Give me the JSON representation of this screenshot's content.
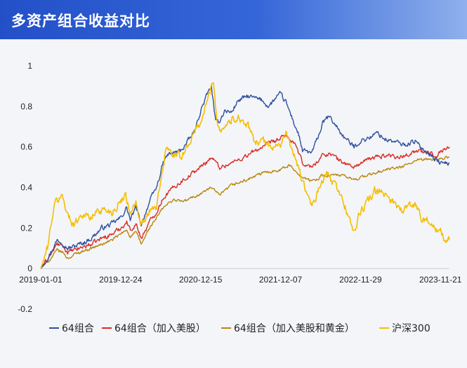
{
  "header": {
    "title": "多资产组合收益对比"
  },
  "chart_data": {
    "type": "line",
    "x_tick_labels": [
      "2019-01-01",
      "2019-12-24",
      "2020-12-15",
      "2021-12-07",
      "2022-11-29",
      "2023-11-21"
    ],
    "x_tick_dates": [
      "2019-01-01",
      "2019-12-24",
      "2020-12-15",
      "2021-12-07",
      "2022-11-29",
      "2023-11-21"
    ],
    "xlim": [
      "2019-01-01",
      "2023-12-31"
    ],
    "y_ticks": [
      -0.2,
      0,
      0.2,
      0.4,
      0.6,
      0.8,
      1
    ],
    "ylim": [
      -0.2,
      1.0
    ],
    "grid": false,
    "legend_position": "bottom",
    "series": [
      {
        "name": "64组合",
        "color": "#2f4fa0",
        "points": [
          [
            "2019-01-01",
            0.0
          ],
          [
            "2019-02-15",
            0.08
          ],
          [
            "2019-03-15",
            0.14
          ],
          [
            "2019-04-10",
            0.13
          ],
          [
            "2019-05-01",
            0.1
          ],
          [
            "2019-06-01",
            0.11
          ],
          [
            "2019-07-15",
            0.13
          ],
          [
            "2019-08-15",
            0.15
          ],
          [
            "2019-10-01",
            0.2
          ],
          [
            "2019-11-15",
            0.22
          ],
          [
            "2019-12-24",
            0.25
          ],
          [
            "2020-01-20",
            0.3
          ],
          [
            "2020-02-05",
            0.24
          ],
          [
            "2020-03-01",
            0.3
          ],
          [
            "2020-03-25",
            0.22
          ],
          [
            "2020-05-01",
            0.33
          ],
          [
            "2020-06-01",
            0.4
          ],
          [
            "2020-07-01",
            0.52
          ],
          [
            "2020-07-20",
            0.56
          ],
          [
            "2020-08-15",
            0.57
          ],
          [
            "2020-09-15",
            0.58
          ],
          [
            "2020-10-15",
            0.62
          ],
          [
            "2020-11-20",
            0.68
          ],
          [
            "2020-12-15",
            0.78
          ],
          [
            "2021-01-10",
            0.85
          ],
          [
            "2021-02-01",
            0.9
          ],
          [
            "2021-02-20",
            0.72
          ],
          [
            "2021-03-10",
            0.73
          ],
          [
            "2021-04-01",
            0.78
          ],
          [
            "2021-05-01",
            0.77
          ],
          [
            "2021-06-01",
            0.83
          ],
          [
            "2021-07-15",
            0.85
          ],
          [
            "2021-08-15",
            0.84
          ],
          [
            "2021-09-15",
            0.83
          ],
          [
            "2021-10-15",
            0.8
          ],
          [
            "2021-11-15",
            0.84
          ],
          [
            "2021-12-07",
            0.86
          ],
          [
            "2021-12-31",
            0.82
          ],
          [
            "2022-01-25",
            0.75
          ],
          [
            "2022-03-01",
            0.65
          ],
          [
            "2022-03-15",
            0.58
          ],
          [
            "2022-04-26",
            0.57
          ],
          [
            "2022-05-20",
            0.64
          ],
          [
            "2022-06-15",
            0.72
          ],
          [
            "2022-07-10",
            0.75
          ],
          [
            "2022-08-15",
            0.7
          ],
          [
            "2022-09-15",
            0.65
          ],
          [
            "2022-10-31",
            0.6
          ],
          [
            "2022-11-29",
            0.63
          ],
          [
            "2023-01-15",
            0.65
          ],
          [
            "2023-02-15",
            0.67
          ],
          [
            "2023-03-15",
            0.64
          ],
          [
            "2023-04-15",
            0.63
          ],
          [
            "2023-05-15",
            0.62
          ],
          [
            "2023-06-15",
            0.61
          ],
          [
            "2023-07-31",
            0.63
          ],
          [
            "2023-08-20",
            0.6
          ],
          [
            "2023-09-20",
            0.58
          ],
          [
            "2023-10-20",
            0.55
          ],
          [
            "2023-11-21",
            0.52
          ],
          [
            "2023-12-31",
            0.52
          ]
        ]
      },
      {
        "name": "64组合（加入美股）",
        "color": "#d82a20",
        "points": [
          [
            "2019-01-01",
            0.0
          ],
          [
            "2019-02-15",
            0.07
          ],
          [
            "2019-03-15",
            0.12
          ],
          [
            "2019-04-10",
            0.11
          ],
          [
            "2019-05-01",
            0.08
          ],
          [
            "2019-06-01",
            0.09
          ],
          [
            "2019-07-15",
            0.11
          ],
          [
            "2019-08-15",
            0.12
          ],
          [
            "2019-10-01",
            0.15
          ],
          [
            "2019-11-15",
            0.17
          ],
          [
            "2019-12-24",
            0.2
          ],
          [
            "2020-01-20",
            0.23
          ],
          [
            "2020-02-05",
            0.19
          ],
          [
            "2020-03-01",
            0.22
          ],
          [
            "2020-03-25",
            0.15
          ],
          [
            "2020-05-01",
            0.23
          ],
          [
            "2020-06-01",
            0.28
          ],
          [
            "2020-07-01",
            0.35
          ],
          [
            "2020-08-15",
            0.4
          ],
          [
            "2020-10-01",
            0.44
          ],
          [
            "2020-12-15",
            0.5
          ],
          [
            "2021-02-01",
            0.55
          ],
          [
            "2021-03-10",
            0.5
          ],
          [
            "2021-05-01",
            0.52
          ],
          [
            "2021-07-15",
            0.56
          ],
          [
            "2021-09-15",
            0.6
          ],
          [
            "2021-11-15",
            0.63
          ],
          [
            "2021-12-07",
            0.64
          ],
          [
            "2021-12-31",
            0.66
          ],
          [
            "2022-02-15",
            0.6
          ],
          [
            "2022-03-15",
            0.52
          ],
          [
            "2022-04-26",
            0.5
          ],
          [
            "2022-06-15",
            0.56
          ],
          [
            "2022-07-15",
            0.57
          ],
          [
            "2022-08-31",
            0.53
          ],
          [
            "2022-10-31",
            0.5
          ],
          [
            "2022-11-29",
            0.52
          ],
          [
            "2023-01-31",
            0.55
          ],
          [
            "2023-03-31",
            0.56
          ],
          [
            "2023-05-31",
            0.55
          ],
          [
            "2023-07-31",
            0.58
          ],
          [
            "2023-09-30",
            0.57
          ],
          [
            "2023-10-31",
            0.56
          ],
          [
            "2023-11-21",
            0.58
          ],
          [
            "2023-12-31",
            0.6
          ]
        ]
      },
      {
        "name": "64组合（加入美股和黄金）",
        "color": "#b8860b",
        "points": [
          [
            "2019-01-01",
            0.0
          ],
          [
            "2019-02-15",
            0.05
          ],
          [
            "2019-03-15",
            0.09
          ],
          [
            "2019-04-10",
            0.08
          ],
          [
            "2019-05-01",
            0.05
          ],
          [
            "2019-06-01",
            0.07
          ],
          [
            "2019-07-15",
            0.09
          ],
          [
            "2019-08-15",
            0.1
          ],
          [
            "2019-10-01",
            0.12
          ],
          [
            "2019-11-15",
            0.14
          ],
          [
            "2019-12-24",
            0.17
          ],
          [
            "2020-01-20",
            0.19
          ],
          [
            "2020-02-05",
            0.16
          ],
          [
            "2020-03-01",
            0.18
          ],
          [
            "2020-03-25",
            0.12
          ],
          [
            "2020-05-01",
            0.2
          ],
          [
            "2020-06-01",
            0.25
          ],
          [
            "2020-07-01",
            0.3
          ],
          [
            "2020-08-15",
            0.34
          ],
          [
            "2020-10-01",
            0.33
          ],
          [
            "2020-12-15",
            0.37
          ],
          [
            "2021-02-01",
            0.4
          ],
          [
            "2021-03-10",
            0.36
          ],
          [
            "2021-05-01",
            0.41
          ],
          [
            "2021-07-15",
            0.44
          ],
          [
            "2021-09-15",
            0.47
          ],
          [
            "2021-12-07",
            0.49
          ],
          [
            "2022-01-15",
            0.51
          ],
          [
            "2022-03-15",
            0.45
          ],
          [
            "2022-04-26",
            0.43
          ],
          [
            "2022-06-15",
            0.46
          ],
          [
            "2022-08-31",
            0.46
          ],
          [
            "2022-10-31",
            0.44
          ],
          [
            "2022-11-29",
            0.45
          ],
          [
            "2023-01-31",
            0.47
          ],
          [
            "2023-03-31",
            0.49
          ],
          [
            "2023-05-31",
            0.5
          ],
          [
            "2023-07-31",
            0.53
          ],
          [
            "2023-09-30",
            0.54
          ],
          [
            "2023-11-21",
            0.54
          ],
          [
            "2023-12-31",
            0.55
          ]
        ]
      },
      {
        "name": "沪深300",
        "color": "#f5be00",
        "points": [
          [
            "2019-01-01",
            0.0
          ],
          [
            "2019-01-31",
            0.1
          ],
          [
            "2019-02-25",
            0.28
          ],
          [
            "2019-03-10",
            0.33
          ],
          [
            "2019-04-08",
            0.36
          ],
          [
            "2019-05-06",
            0.25
          ],
          [
            "2019-06-01",
            0.22
          ],
          [
            "2019-07-01",
            0.27
          ],
          [
            "2019-08-15",
            0.25
          ],
          [
            "2019-09-15",
            0.29
          ],
          [
            "2019-10-15",
            0.29
          ],
          [
            "2019-11-15",
            0.28
          ],
          [
            "2019-12-24",
            0.33
          ],
          [
            "2020-01-15",
            0.37
          ],
          [
            "2020-02-03",
            0.28
          ],
          [
            "2020-03-01",
            0.33
          ],
          [
            "2020-03-23",
            0.2
          ],
          [
            "2020-04-30",
            0.28
          ],
          [
            "2020-06-01",
            0.3
          ],
          [
            "2020-07-01",
            0.5
          ],
          [
            "2020-07-15",
            0.6
          ],
          [
            "2020-08-15",
            0.56
          ],
          [
            "2020-09-15",
            0.55
          ],
          [
            "2020-10-15",
            0.6
          ],
          [
            "2020-11-20",
            0.68
          ],
          [
            "2020-12-15",
            0.72
          ],
          [
            "2021-01-20",
            0.85
          ],
          [
            "2021-02-10",
            0.93
          ],
          [
            "2021-02-25",
            0.75
          ],
          [
            "2021-03-10",
            0.68
          ],
          [
            "2021-04-15",
            0.72
          ],
          [
            "2021-06-01",
            0.75
          ],
          [
            "2021-07-15",
            0.7
          ],
          [
            "2021-08-15",
            0.62
          ],
          [
            "2021-09-15",
            0.64
          ],
          [
            "2021-10-15",
            0.6
          ],
          [
            "2021-12-07",
            0.62
          ],
          [
            "2021-12-31",
            0.66
          ],
          [
            "2022-01-31",
            0.58
          ],
          [
            "2022-03-15",
            0.43
          ],
          [
            "2022-04-26",
            0.3
          ],
          [
            "2022-05-31",
            0.4
          ],
          [
            "2022-06-30",
            0.47
          ],
          [
            "2022-07-31",
            0.42
          ],
          [
            "2022-08-31",
            0.37
          ],
          [
            "2022-10-31",
            0.18
          ],
          [
            "2022-11-29",
            0.28
          ],
          [
            "2023-01-31",
            0.38
          ],
          [
            "2023-03-31",
            0.36
          ],
          [
            "2023-05-31",
            0.29
          ],
          [
            "2023-07-31",
            0.32
          ],
          [
            "2023-08-31",
            0.25
          ],
          [
            "2023-09-30",
            0.24
          ],
          [
            "2023-10-31",
            0.18
          ],
          [
            "2023-11-21",
            0.19
          ],
          [
            "2023-12-15",
            0.12
          ],
          [
            "2023-12-31",
            0.14
          ]
        ]
      }
    ]
  }
}
